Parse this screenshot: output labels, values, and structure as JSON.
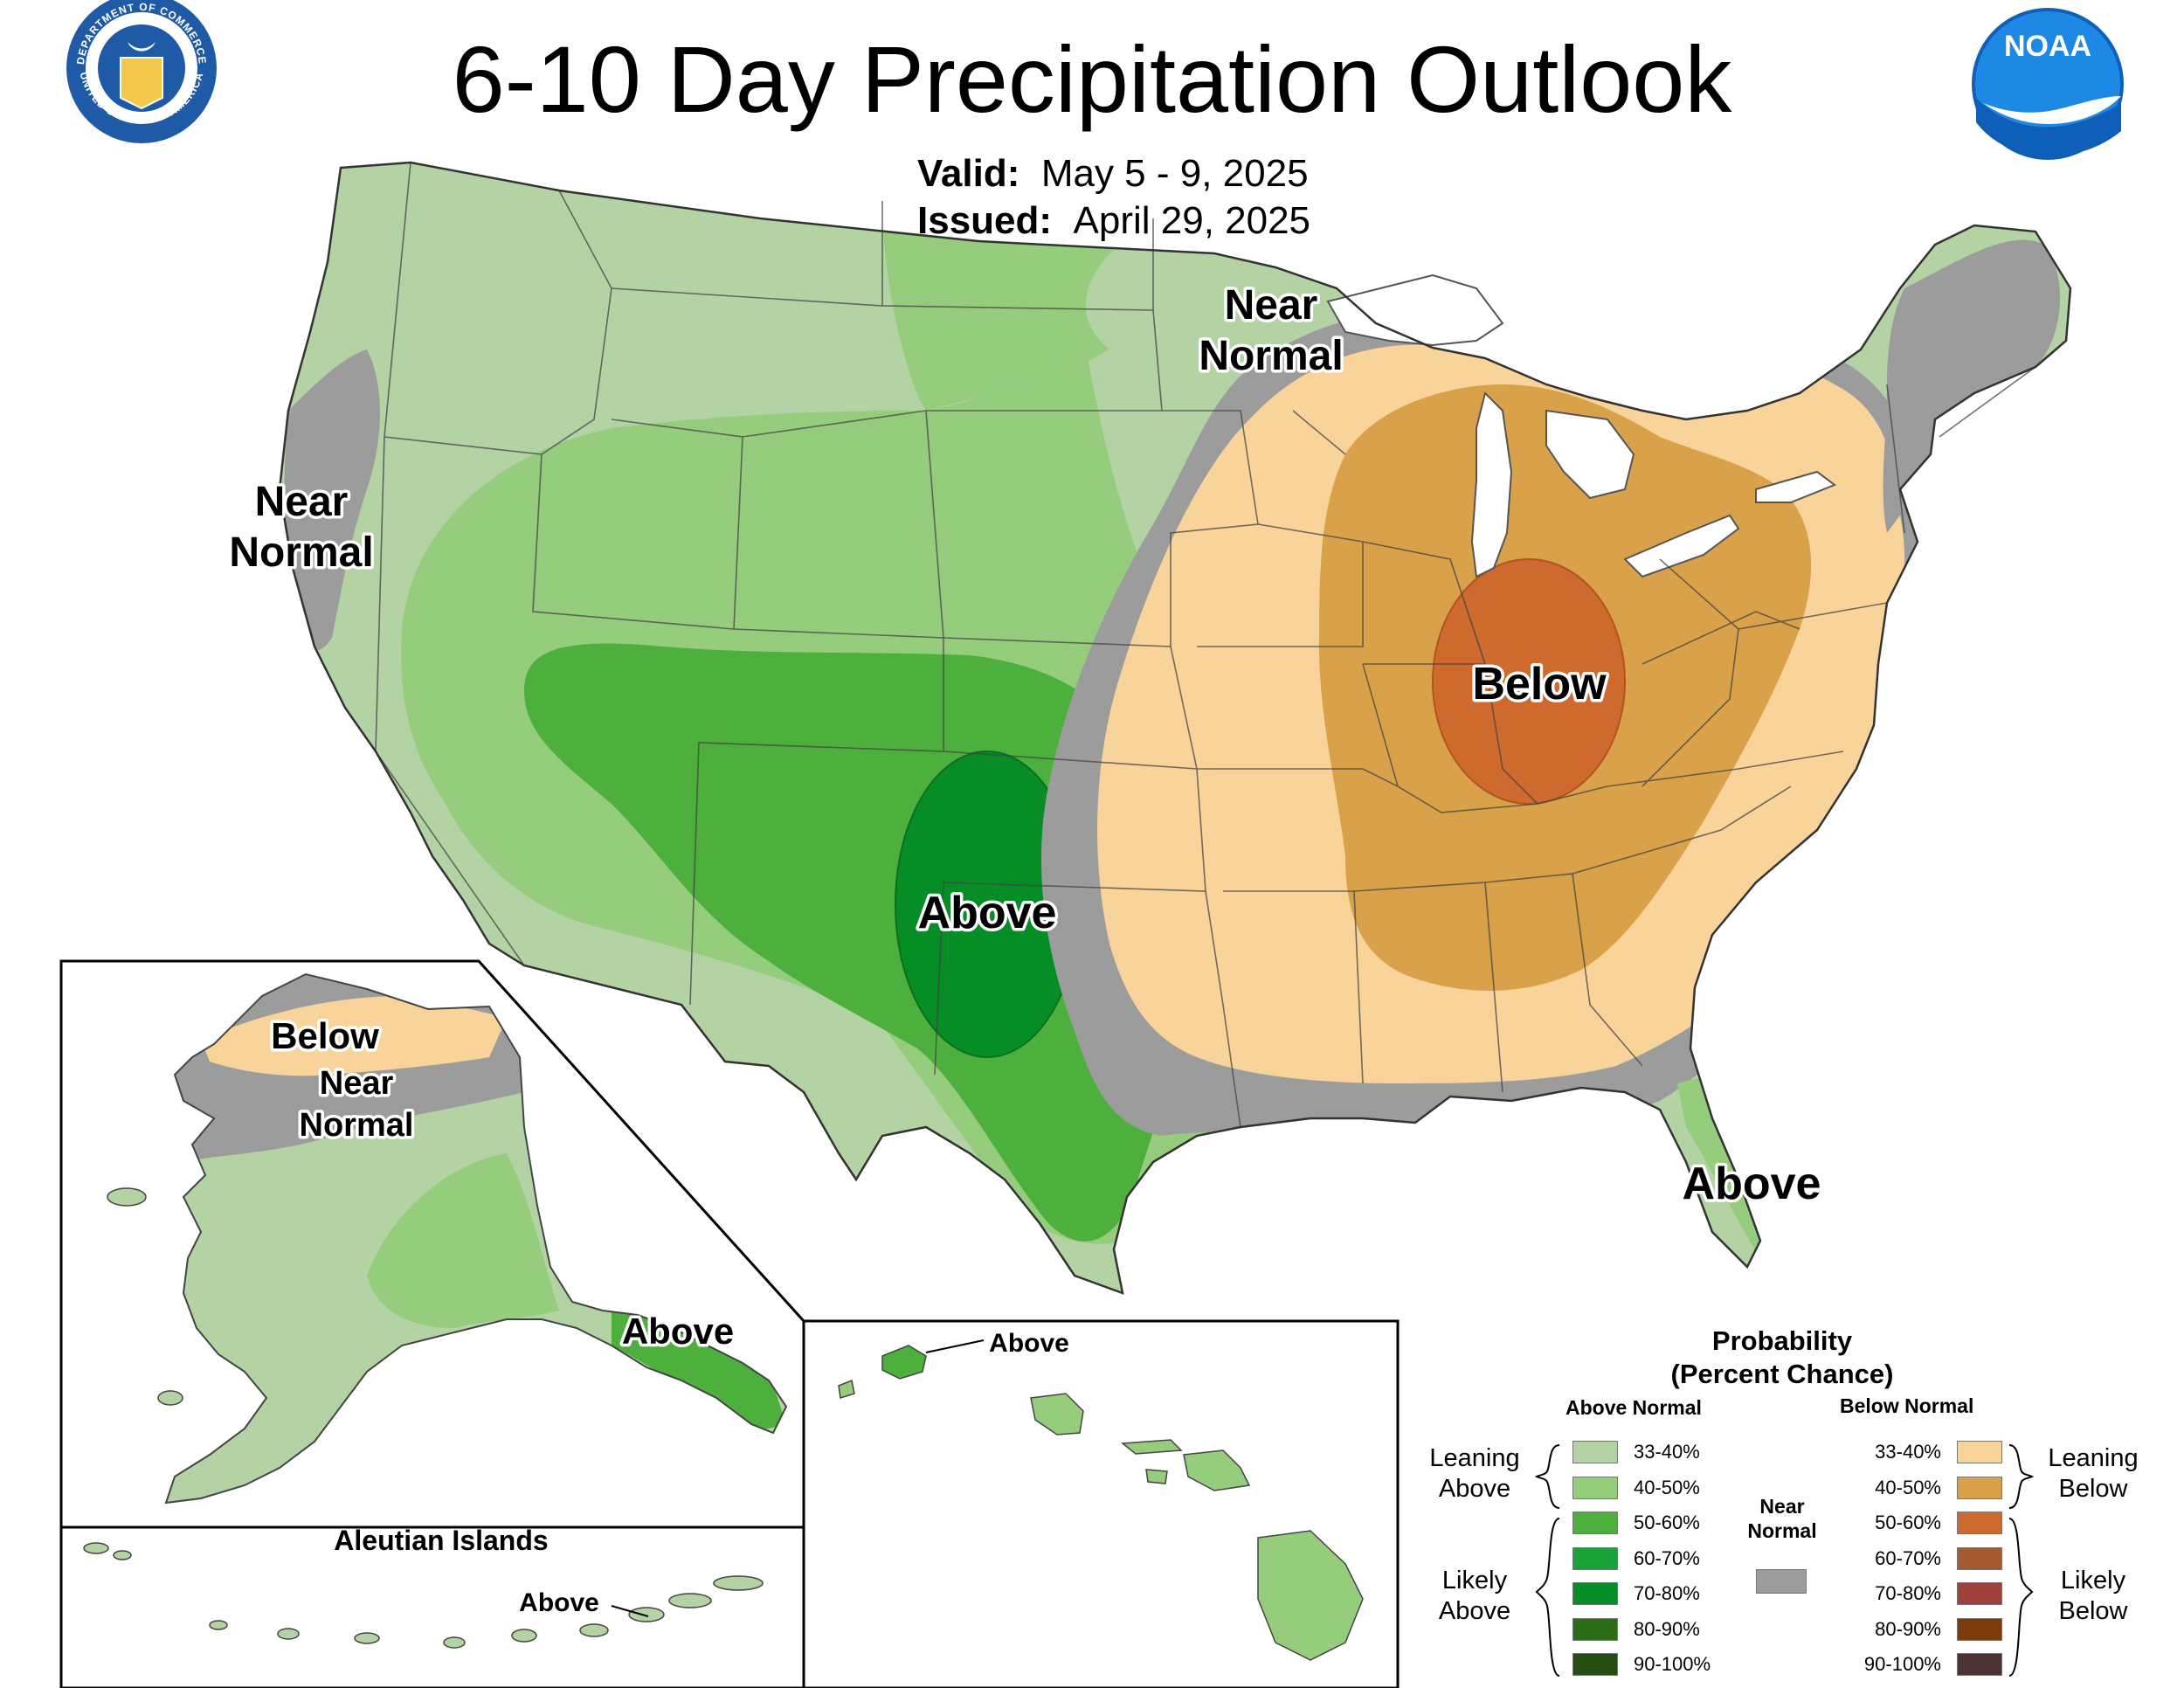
{
  "header": {
    "title": "6-10 Day Precipitation Outlook",
    "valid_label": "Valid:",
    "valid_value": "May 5 - 9, 2025",
    "issued_label": "Issued:",
    "issued_value": "April 29, 2025",
    "left_logo": "Department of Commerce seal",
    "left_logo_text_top": "DEPARTMENT OF COMMERCE",
    "left_logo_text_bottom": "UNITED STATES OF AMERICA",
    "right_logo": "NOAA logo",
    "right_logo_text": "NOAA"
  },
  "map": {
    "labels": {
      "west_near_normal": [
        "Near",
        "Normal"
      ],
      "midwest_near_normal": [
        "Near",
        "Normal"
      ],
      "central_above": "Above",
      "east_below": "Below",
      "florida_above": "Above",
      "alaska_below": "Below",
      "alaska_near_normal": [
        "Near",
        "Normal"
      ],
      "alaska_above": "Above",
      "aleutian_title": "Aleutian Islands",
      "aleutian_above": "Above",
      "hawaii_above": "Above"
    }
  },
  "legend": {
    "title_line1": "Probability",
    "title_line2": "(Percent Chance)",
    "above_heading": "Above Normal",
    "below_heading": "Below Normal",
    "near_heading": [
      "Near",
      "Normal"
    ],
    "leaning_above": [
      "Leaning",
      "Above"
    ],
    "likely_above": [
      "Likely",
      "Above"
    ],
    "leaning_below": [
      "Leaning",
      "Below"
    ],
    "likely_below": [
      "Likely",
      "Below"
    ],
    "above_bins": [
      {
        "label": "33-40%",
        "color": "#b3d3a5"
      },
      {
        "label": "40-50%",
        "color": "#95cd7d"
      },
      {
        "label": "50-60%",
        "color": "#4db03c"
      },
      {
        "label": "60-70%",
        "color": "#19a23a"
      },
      {
        "label": "70-80%",
        "color": "#078d25"
      },
      {
        "label": "80-90%",
        "color": "#2d6d17"
      },
      {
        "label": "90-100%",
        "color": "#264e12"
      }
    ],
    "below_bins": [
      {
        "label": "33-40%",
        "color": "#f9d49a"
      },
      {
        "label": "40-50%",
        "color": "#d9a24a"
      },
      {
        "label": "50-60%",
        "color": "#cf6a2e"
      },
      {
        "label": "60-70%",
        "color": "#a55a32"
      },
      {
        "label": "70-80%",
        "color": "#a0403a"
      },
      {
        "label": "80-90%",
        "color": "#7d3b0c"
      },
      {
        "label": "90-100%",
        "color": "#4d3334"
      }
    ],
    "near_color": "#9c9c9c"
  }
}
